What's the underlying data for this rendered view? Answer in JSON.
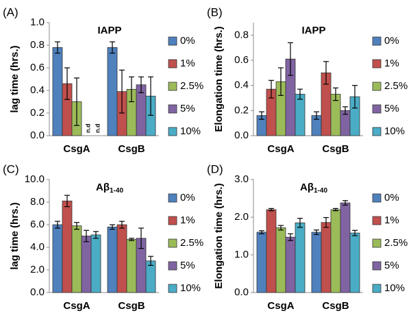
{
  "chart_data": [
    {
      "type": "bar",
      "panel": "(A)",
      "title": "IAPP",
      "ylabel": "lag time (hrs.)",
      "categories": [
        "CsgA",
        "CsgB"
      ],
      "ylim": [
        0,
        1
      ],
      "yticks": [
        {
          "value": 0,
          "label": "0.0"
        },
        0.2,
        0.4,
        0.6,
        0.8,
        {
          "value": 1,
          "label": "1.0"
        }
      ],
      "series": [
        {
          "name": "0%",
          "color": "#4f81bd",
          "values": [
            0.78,
            0.78
          ],
          "errors": [
            0.05,
            0.05
          ]
        },
        {
          "name": "1%",
          "color": "#c0504d",
          "values": [
            0.46,
            0.39
          ],
          "errors": [
            0.14,
            0.19
          ]
        },
        {
          "name": "2.5%",
          "color": "#9bbb59",
          "values": [
            0.3,
            0.41
          ],
          "errors": [
            0.21,
            0.11
          ]
        },
        {
          "name": "5%",
          "color": "#8064a2",
          "values": [
            null,
            0.45
          ],
          "errors": [
            null,
            0.07
          ],
          "value_labels": [
            "n.d",
            null
          ]
        },
        {
          "name": "10%",
          "color": "#4bacc6",
          "values": [
            null,
            0.35
          ],
          "errors": [
            null,
            0.17
          ],
          "value_labels": [
            "n.d",
            null
          ]
        }
      ]
    },
    {
      "type": "bar",
      "panel": "(B)",
      "title": "IAPP",
      "ylabel": "Elongation time (hrs.)",
      "categories": [
        "CsgA",
        "CsgB"
      ],
      "ylim": [
        0,
        0.9
      ],
      "yticks": [
        {
          "value": 0,
          "label": "0.0"
        },
        0.2,
        0.4,
        0.6,
        0.8
      ],
      "series": [
        {
          "name": "0%",
          "color": "#4f81bd",
          "values": [
            0.16,
            0.16
          ],
          "errors": [
            0.03,
            0.03
          ]
        },
        {
          "name": "1%",
          "color": "#c0504d",
          "values": [
            0.37,
            0.5
          ],
          "errors": [
            0.07,
            0.09
          ]
        },
        {
          "name": "2.5%",
          "color": "#9bbb59",
          "values": [
            0.43,
            0.33
          ],
          "errors": [
            0.11,
            0.05
          ]
        },
        {
          "name": "5%",
          "color": "#8064a2",
          "values": [
            0.61,
            0.2
          ],
          "errors": [
            0.13,
            0.03
          ]
        },
        {
          "name": "10%",
          "color": "#4bacc6",
          "values": [
            0.33,
            0.31
          ],
          "errors": [
            0.04,
            0.09
          ]
        }
      ]
    },
    {
      "type": "bar",
      "panel": "(C)",
      "title": "Aβ",
      "title_sub": "1-40",
      "ylabel": "lag time (hrs.)",
      "categories": [
        "CsgA",
        "CsgB"
      ],
      "ylim": [
        0,
        10
      ],
      "yticks": [
        {
          "value": 0,
          "label": "0.0"
        },
        {
          "value": 2,
          "label": "2.0"
        },
        {
          "value": 4,
          "label": "4.0"
        },
        {
          "value": 6,
          "label": "6.0"
        },
        {
          "value": 8,
          "label": "8.0"
        },
        {
          "value": 10,
          "label": "10.0"
        }
      ],
      "series": [
        {
          "name": "0%",
          "color": "#4f81bd",
          "values": [
            6.0,
            5.8
          ],
          "errors": [
            0.3,
            0.2
          ]
        },
        {
          "name": "1%",
          "color": "#c0504d",
          "values": [
            8.1,
            6.0
          ],
          "errors": [
            0.5,
            0.3
          ]
        },
        {
          "name": "2.5%",
          "color": "#9bbb59",
          "values": [
            5.9,
            4.7
          ],
          "errors": [
            0.3,
            0.1
          ]
        },
        {
          "name": "5%",
          "color": "#8064a2",
          "values": [
            5.0,
            4.8
          ],
          "errors": [
            0.5,
            0.9
          ]
        },
        {
          "name": "10%",
          "color": "#4bacc6",
          "values": [
            5.1,
            2.8
          ],
          "errors": [
            0.3,
            0.4
          ]
        }
      ]
    },
    {
      "type": "bar",
      "panel": "(D)",
      "title": "Aβ",
      "title_sub": "1-40",
      "ylabel": "Elongation time (hrs.)",
      "categories": [
        "CsgA",
        "CsgB"
      ],
      "ylim": [
        0,
        3
      ],
      "yticks": [
        {
          "value": 0,
          "label": "0.0"
        },
        {
          "value": 1,
          "label": "1.0"
        },
        {
          "value": 2,
          "label": "2.0"
        },
        {
          "value": 3,
          "label": "3.0"
        }
      ],
      "series": [
        {
          "name": "0%",
          "color": "#4f81bd",
          "values": [
            1.6,
            1.6
          ],
          "errors": [
            0.04,
            0.06
          ]
        },
        {
          "name": "1%",
          "color": "#c0504d",
          "values": [
            2.2,
            1.86
          ],
          "errors": [
            0.03,
            0.13
          ]
        },
        {
          "name": "2.5%",
          "color": "#9bbb59",
          "values": [
            1.72,
            2.2
          ],
          "errors": [
            0.06,
            0.03
          ]
        },
        {
          "name": "5%",
          "color": "#8064a2",
          "values": [
            1.47,
            2.38
          ],
          "errors": [
            0.09,
            0.06
          ]
        },
        {
          "name": "10%",
          "color": "#4bacc6",
          "values": [
            1.85,
            1.58
          ],
          "errors": [
            0.12,
            0.07
          ]
        }
      ]
    }
  ]
}
